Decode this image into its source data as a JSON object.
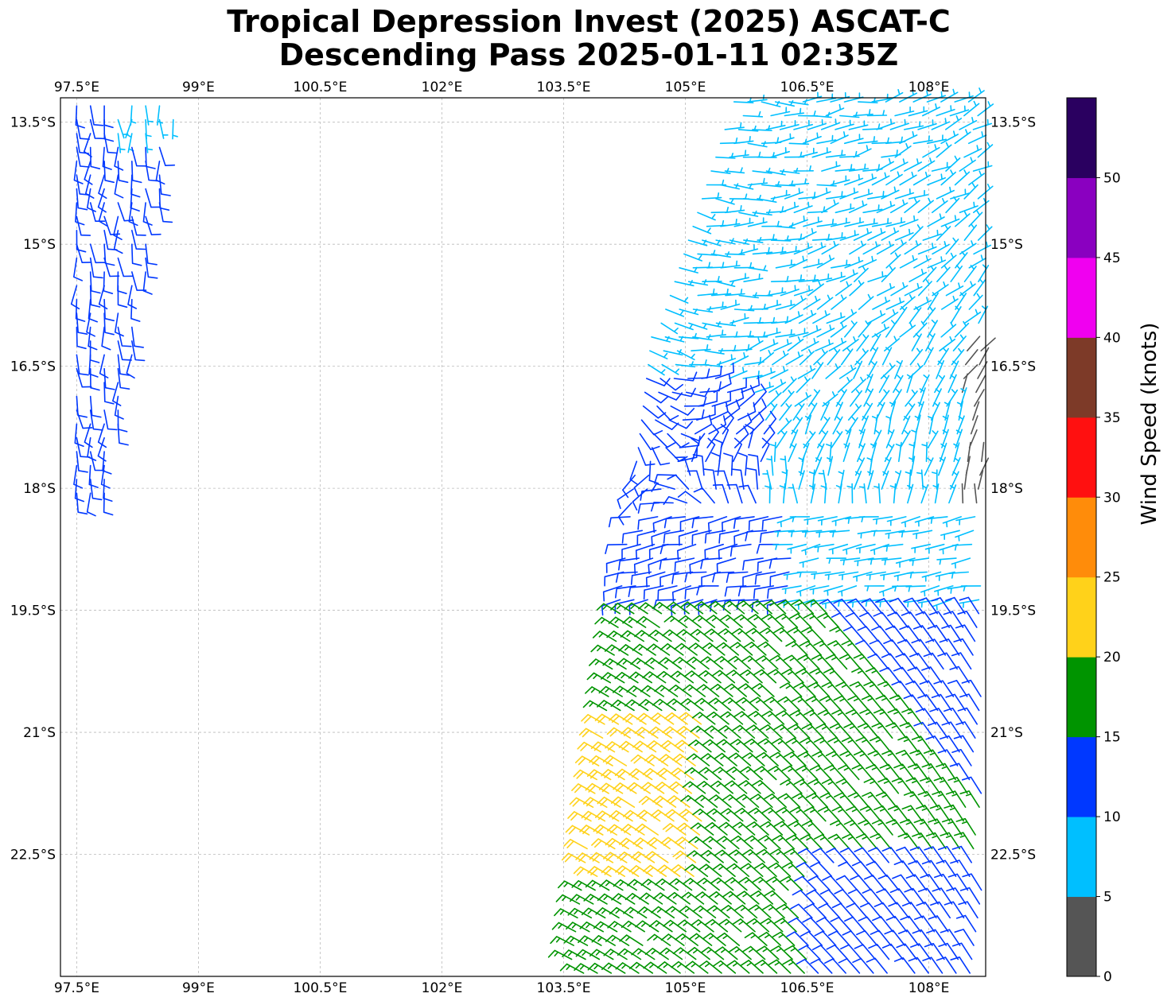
{
  "title": {
    "line1": "Tropical Depression Invest (2025) ASCAT-C",
    "line2": "Descending Pass 2025-01-11 02:35Z"
  },
  "map": {
    "lon_range": [
      97.3,
      108.7
    ],
    "lat_range": [
      -24.0,
      -13.2
    ],
    "lon_ticks": [
      97.5,
      99,
      100.5,
      102,
      103.5,
      105,
      106.5,
      108
    ],
    "lon_tick_labels": [
      "97.5°E",
      "99°E",
      "100.5°E",
      "102°E",
      "103.5°E",
      "105°E",
      "106.5°E",
      "108°E"
    ],
    "lat_ticks": [
      -13.5,
      -15,
      -16.5,
      -18,
      -19.5,
      -21,
      -22.5
    ],
    "lat_tick_labels": [
      "13.5°S",
      "15°S",
      "16.5°S",
      "18°S",
      "19.5°S",
      "21°S",
      "22.5°S"
    ],
    "gridlines": true,
    "symbol": "wind barbs"
  },
  "colorbar": {
    "label": "Wind Speed (knots)",
    "ticks": [
      "0",
      "5",
      "10",
      "15",
      "20",
      "25",
      "30",
      "35",
      "40",
      "45",
      "50"
    ],
    "bins": [
      {
        "from": 0,
        "to": 5,
        "color": "#555555"
      },
      {
        "from": 5,
        "to": 10,
        "color": "#00bfff"
      },
      {
        "from": 10,
        "to": 15,
        "color": "#0038ff"
      },
      {
        "from": 15,
        "to": 20,
        "color": "#009400"
      },
      {
        "from": 20,
        "to": 25,
        "color": "#ffd21a"
      },
      {
        "from": 25,
        "to": 30,
        "color": "#ff8c0a"
      },
      {
        "from": 30,
        "to": 35,
        "color": "#ff1010"
      },
      {
        "from": 35,
        "to": 40,
        "color": "#7d3a28"
      },
      {
        "from": 40,
        "to": 45,
        "color": "#f000f0"
      },
      {
        "from": 45,
        "to": 50,
        "color": "#8a00c0"
      },
      {
        "from": 50,
        "to": 55,
        "color": "#2a0060"
      }
    ]
  },
  "chart_data": {
    "type": "scatter",
    "x_unit": "degrees longitude",
    "y_unit": "degrees latitude",
    "value_unit": "knots",
    "regions": [
      {
        "lon": [
          97.5,
          98.8
        ],
        "lat": [
          -18.2,
          -13.2
        ],
        "speed_kt": [
          5,
          15
        ]
      },
      {
        "lon": [
          104.4,
          108.7
        ],
        "lat": [
          -19.6,
          -13.2
        ],
        "speed_kt": [
          5,
          15
        ]
      },
      {
        "lon": [
          103.5,
          108.7
        ],
        "lat": [
          -24.0,
          -19.5
        ],
        "speed_kt": [
          10,
          25
        ]
      }
    ]
  }
}
